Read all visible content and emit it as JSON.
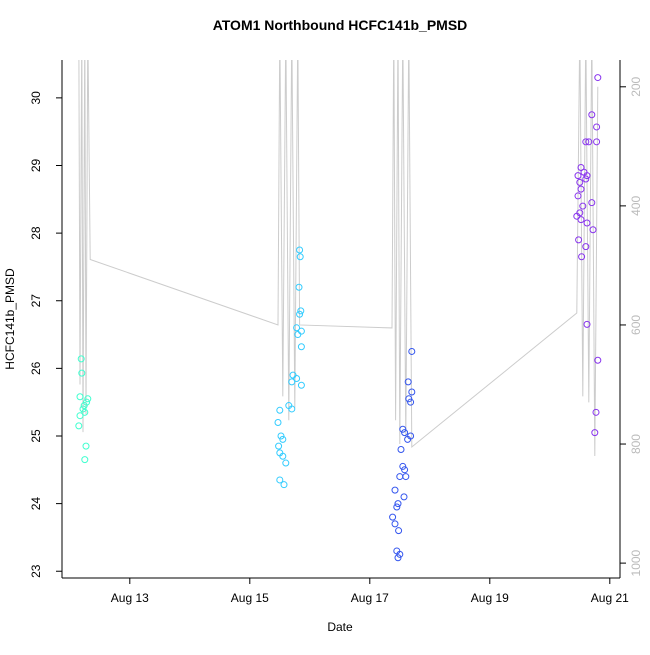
{
  "chart_data": {
    "type": "scatter",
    "title": "ATOM1 Northbound HCFC141b_PMSD",
    "x_label": "Date",
    "y_label": "HCFC141b_PMSD",
    "xlim": [
      11.87,
      21.17
    ],
    "xticks": [
      {
        "value": 13,
        "label": "Aug 13"
      },
      {
        "value": 15,
        "label": "Aug 15"
      },
      {
        "value": 17,
        "label": "Aug 17"
      },
      {
        "value": 19,
        "label": "Aug 19"
      },
      {
        "value": 21,
        "label": "Aug 21"
      }
    ],
    "ylim": [
      22.9,
      30.56
    ],
    "yticks": [
      23,
      24,
      25,
      26,
      27,
      28,
      29,
      30
    ],
    "y2lim": [
      1025,
      155
    ],
    "y2ticks": [
      200,
      400,
      600,
      800,
      1000
    ],
    "y2_color": "#bbbbbb",
    "series": [
      {
        "color": "#3fffcf",
        "x": [
          12.19,
          12.2,
          12.17,
          12.3,
          12.28,
          12.24,
          12.22,
          12.25,
          12.17,
          12.15,
          12.27,
          12.25
        ],
        "values": [
          26.14,
          25.93,
          25.58,
          25.55,
          25.5,
          25.45,
          25.4,
          25.35,
          25.3,
          25.15,
          24.85,
          24.65
        ]
      },
      {
        "color": "#33ccff",
        "x": [
          15.83,
          15.84,
          15.82,
          15.85,
          15.83,
          15.78,
          15.86,
          15.8,
          15.86,
          15.72,
          15.78,
          15.7,
          15.86,
          15.65,
          15.7,
          15.5,
          15.47,
          15.52,
          15.55,
          15.48,
          15.5,
          15.55,
          15.6,
          15.5,
          15.57
        ],
        "values": [
          27.75,
          27.65,
          27.2,
          26.85,
          26.8,
          26.6,
          26.55,
          26.5,
          26.32,
          25.9,
          25.85,
          25.8,
          25.75,
          25.45,
          25.4,
          25.38,
          25.2,
          25.0,
          24.95,
          24.85,
          24.75,
          24.7,
          24.6,
          24.35,
          24.28
        ]
      },
      {
        "color": "#3355ee",
        "x": [
          17.7,
          17.64,
          17.7,
          17.65,
          17.68,
          17.55,
          17.58,
          17.68,
          17.63,
          17.52,
          17.55,
          17.58,
          17.5,
          17.6,
          17.42,
          17.57,
          17.47,
          17.45,
          17.38,
          17.42,
          17.48,
          17.45,
          17.5,
          17.47
        ],
        "values": [
          26.25,
          25.8,
          25.65,
          25.55,
          25.5,
          25.1,
          25.05,
          25.0,
          24.95,
          24.8,
          24.55,
          24.5,
          24.4,
          24.4,
          24.2,
          24.1,
          24.0,
          23.95,
          23.8,
          23.7,
          23.6,
          23.3,
          23.25,
          23.2
        ]
      },
      {
        "color": "#8833ee",
        "x": [
          20.8,
          20.7,
          20.78,
          20.6,
          20.65,
          20.78,
          20.52,
          20.57,
          20.47,
          20.62,
          20.6,
          20.5,
          20.52,
          20.47,
          20.7,
          20.55,
          20.5,
          20.45,
          20.52,
          20.62,
          20.72,
          20.48,
          20.6,
          20.53,
          20.62,
          20.8,
          20.77,
          20.75
        ],
        "values": [
          30.3,
          29.75,
          29.57,
          29.35,
          29.35,
          29.35,
          28.97,
          28.9,
          28.85,
          28.85,
          28.8,
          28.75,
          28.65,
          28.55,
          28.45,
          28.4,
          28.3,
          28.25,
          28.2,
          28.15,
          28.05,
          27.9,
          27.8,
          27.65,
          26.65,
          26.12,
          25.35,
          25.05
        ]
      }
    ],
    "line": {
      "axis": "y2",
      "color": "#cccccc",
      "x": [
        12.15,
        12.17,
        12.2,
        12.22,
        12.25,
        12.27,
        12.3,
        12.34,
        15.47,
        15.5,
        15.55,
        15.6,
        15.65,
        15.7,
        15.75,
        15.8,
        15.83,
        17.37,
        17.4,
        17.43,
        17.47,
        17.5,
        17.55,
        17.6,
        17.65,
        17.7,
        20.45,
        20.5,
        20.55,
        20.6,
        20.65,
        20.7,
        20.75,
        20.8
      ],
      "values": [
        100,
        700,
        100,
        780,
        100,
        750,
        100,
        490,
        600,
        100,
        720,
        100,
        760,
        100,
        740,
        100,
        600,
        605,
        100,
        760,
        100,
        800,
        100,
        790,
        100,
        805,
        580,
        100,
        720,
        100,
        730,
        100,
        820,
        200
      ]
    }
  }
}
